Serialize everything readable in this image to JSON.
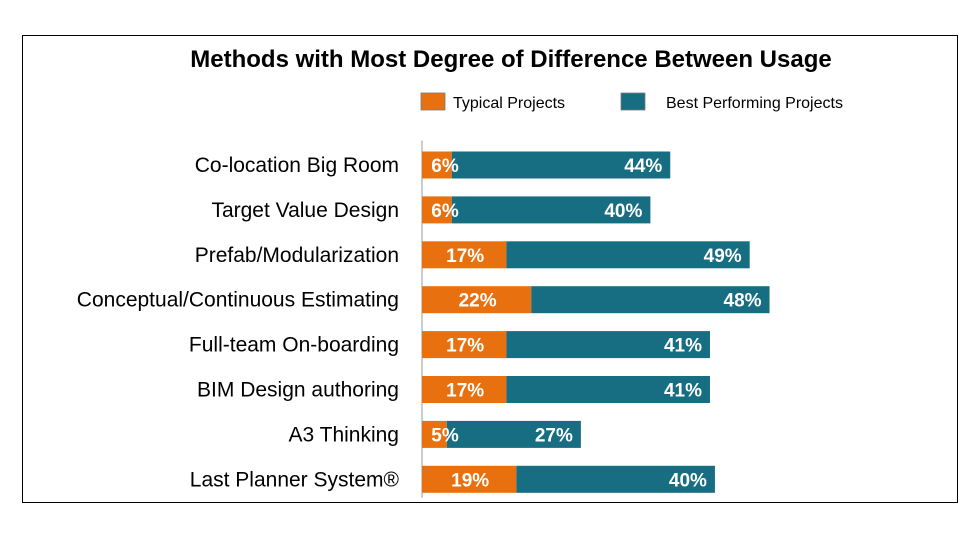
{
  "chart_data": {
    "type": "bar",
    "orientation": "horizontal",
    "stacked": true,
    "title": "Methods with Most Degree of Difference Between Usage",
    "legend_position": "top-right",
    "categories": [
      "Co-location Big Room",
      "Target Value Design",
      "Prefab/Modularization",
      "Conceptual/Continuous Estimating",
      "Full-team On-boarding",
      "BIM Design authoring",
      "A3 Thinking",
      "Last Planner System®"
    ],
    "series": [
      {
        "name": "Typical Projects",
        "color": "#E8700E",
        "values": [
          6,
          6,
          17,
          22,
          17,
          17,
          5,
          19
        ],
        "labels": [
          "6%",
          "6%",
          "17%",
          "22%",
          "17%",
          "17%",
          "5%",
          "19%"
        ]
      },
      {
        "name": "Best Performing Projects",
        "color": "#176E82",
        "values": [
          44,
          40,
          49,
          48,
          41,
          41,
          27,
          40
        ],
        "labels": [
          "44%",
          "40%",
          "49%",
          "48%",
          "41%",
          "41%",
          "27%",
          "40%"
        ]
      }
    ],
    "grid": false
  }
}
